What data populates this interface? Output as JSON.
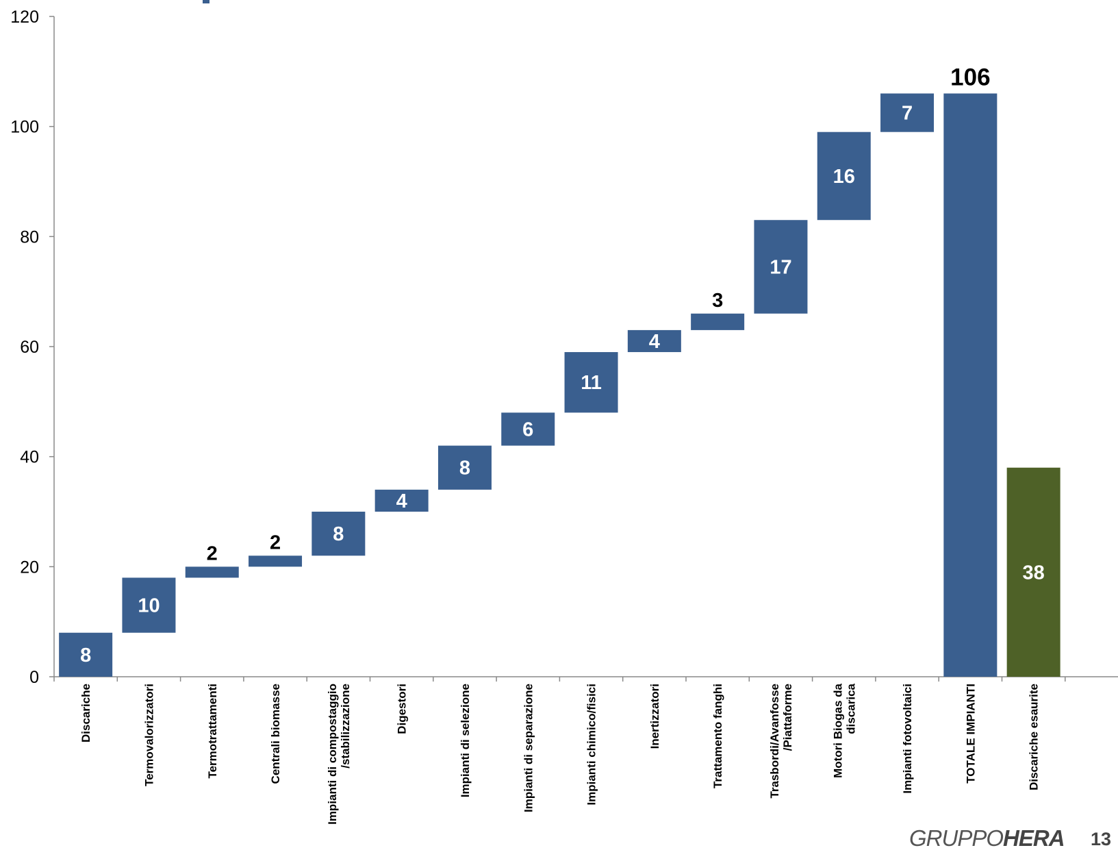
{
  "chart_data": {
    "type": "bar",
    "subtype": "waterfall",
    "categories": [
      "Discariche",
      "Termovalorizzatori",
      "Termotrattamenti",
      "Centrali biomasse",
      "Impianti di compostaggio\n/stabilizzazione",
      "Digestori",
      "Impianti di selezione",
      "Impianti di separazione",
      "Impianti chimico/fisici",
      "Inertizzatori",
      "Trattamento fanghi",
      "Trasbordi/Avanfosse\n/Piattaforme",
      "Motori Biogas da\ndiscarica",
      "Impianti fotovoltaici",
      "TOTALE IMPIANTI",
      "Discariche esaurite"
    ],
    "values": [
      8,
      10,
      2,
      2,
      8,
      4,
      8,
      6,
      11,
      4,
      3,
      17,
      16,
      7,
      106,
      38
    ],
    "bases": [
      0,
      8,
      18,
      20,
      22,
      30,
      34,
      42,
      48,
      59,
      63,
      66,
      83,
      99,
      0,
      0
    ],
    "value_labels": [
      "8",
      "10",
      "2",
      "2",
      "8",
      "4",
      "8",
      "6",
      "11",
      "4",
      "3",
      "17",
      "16",
      "7",
      "106",
      "38"
    ],
    "label_outside": [
      false,
      false,
      true,
      true,
      false,
      false,
      false,
      false,
      false,
      false,
      true,
      false,
      false,
      false,
      true,
      false
    ],
    "colors": [
      "#3a5f8f",
      "#3a5f8f",
      "#3a5f8f",
      "#3a5f8f",
      "#3a5f8f",
      "#3a5f8f",
      "#3a5f8f",
      "#3a5f8f",
      "#3a5f8f",
      "#3a5f8f",
      "#3a5f8f",
      "#3a5f8f",
      "#3a5f8f",
      "#3a5f8f",
      "#3a5f8f",
      "#4e6127"
    ],
    "ylim": [
      0,
      120
    ],
    "yticks": [
      0,
      20,
      40,
      60,
      80,
      100,
      120
    ],
    "grid": false,
    "legend": "none",
    "title": "",
    "xlabel": "",
    "ylabel": ""
  },
  "footer": {
    "logo_light": "GRUPPO",
    "logo_bold": "HERA",
    "page_number": "13"
  }
}
